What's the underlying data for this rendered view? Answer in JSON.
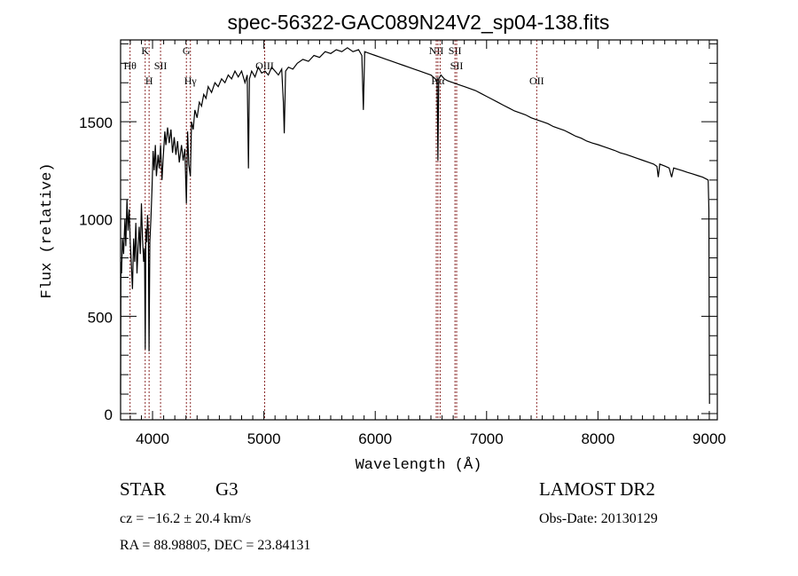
{
  "chart_data": {
    "type": "line",
    "title": "spec-56322-GAC089N24V2_sp04-138.fits",
    "xlabel": "Wavelength (Å)",
    "ylabel": "Flux (relative)",
    "xlim": [
      3713,
      9072
    ],
    "ylim": [
      -32,
      1920
    ],
    "xticks": [
      4000,
      5000,
      6000,
      7000,
      8000,
      9000
    ],
    "yticks": [
      0,
      500,
      1000,
      1500
    ],
    "grid": false,
    "series": [
      {
        "name": "spectrum",
        "color": "#000000",
        "x": [
          3713,
          3716,
          3722,
          3730,
          3740,
          3752,
          3760,
          3770,
          3780,
          3790,
          3800,
          3810,
          3820,
          3830,
          3840,
          3850,
          3860,
          3870,
          3880,
          3890,
          3900,
          3910,
          3920,
          3928,
          3934,
          3940,
          3948,
          3955,
          3962,
          3969,
          3976,
          3985,
          3995,
          4005,
          4015,
          4025,
          4035,
          4050,
          4060,
          4072,
          4085,
          4095,
          4110,
          4120,
          4135,
          4150,
          4165,
          4180,
          4195,
          4210,
          4225,
          4240,
          4260,
          4275,
          4290,
          4304,
          4315,
          4325,
          4340,
          4350,
          4365,
          4380,
          4400,
          4420,
          4440,
          4460,
          4480,
          4500,
          4530,
          4560,
          4590,
          4620,
          4650,
          4680,
          4710,
          4740,
          4770,
          4800,
          4830,
          4850,
          4861,
          4870,
          4890,
          4920,
          4950,
          4980,
          5010,
          5040,
          5070,
          5100,
          5130,
          5160,
          5175,
          5183,
          5195,
          5220,
          5260,
          5300,
          5350,
          5400,
          5450,
          5500,
          5550,
          5600,
          5650,
          5700,
          5750,
          5800,
          5850,
          5880,
          5893,
          5905,
          5950,
          6000,
          6050,
          6100,
          6150,
          6200,
          6250,
          6300,
          6350,
          6400,
          6450,
          6500,
          6540,
          6556,
          6563,
          6570,
          6590,
          6620,
          6650,
          6700,
          6750,
          6800,
          6850,
          6900,
          6950,
          7000,
          7050,
          7100,
          7150,
          7200,
          7250,
          7300,
          7350,
          7400,
          7450,
          7500,
          7550,
          7600,
          7650,
          7700,
          7750,
          7800,
          7850,
          7900,
          7950,
          8000,
          8050,
          8100,
          8150,
          8200,
          8250,
          8300,
          8350,
          8400,
          8450,
          8500,
          8530,
          8542,
          8555,
          8600,
          8640,
          8662,
          8680,
          8720,
          8760,
          8800,
          8850,
          8900,
          8940,
          8975,
          8990,
          8996,
          9000,
          9002
        ],
        "y": [
          100,
          780,
          720,
          900,
          820,
          1000,
          860,
          1100,
          940,
          1050,
          880,
          760,
          640,
          900,
          780,
          980,
          720,
          850,
          960,
          820,
          1080,
          900,
          780,
          850,
          330,
          950,
          880,
          1020,
          940,
          320,
          880,
          1000,
          1150,
          1350,
          1250,
          1380,
          1220,
          1330,
          1260,
          1380,
          1200,
          1310,
          1450,
          1380,
          1470,
          1390,
          1460,
          1340,
          1420,
          1330,
          1400,
          1290,
          1380,
          1300,
          1360,
          1080,
          1450,
          1280,
          1220,
          1500,
          1460,
          1560,
          1520,
          1600,
          1580,
          1640,
          1620,
          1680,
          1650,
          1700,
          1680,
          1720,
          1700,
          1740,
          1720,
          1760,
          1730,
          1760,
          1700,
          1740,
          1260,
          1720,
          1760,
          1730,
          1780,
          1750,
          1760,
          1740,
          1780,
          1760,
          1740,
          1770,
          1600,
          1440,
          1760,
          1780,
          1770,
          1800,
          1820,
          1810,
          1840,
          1830,
          1860,
          1850,
          1870,
          1860,
          1880,
          1860,
          1870,
          1840,
          1560,
          1860,
          1850,
          1840,
          1830,
          1820,
          1810,
          1800,
          1790,
          1780,
          1770,
          1760,
          1750,
          1740,
          1720,
          1700,
          1300,
          1720,
          1740,
          1720,
          1710,
          1700,
          1690,
          1680,
          1670,
          1660,
          1645,
          1630,
          1615,
          1600,
          1585,
          1570,
          1555,
          1545,
          1535,
          1520,
          1510,
          1500,
          1490,
          1475,
          1465,
          1455,
          1440,
          1425,
          1415,
          1400,
          1390,
          1382,
          1372,
          1362,
          1352,
          1340,
          1332,
          1322,
          1312,
          1302,
          1292,
          1282,
          1270,
          1215,
          1282,
          1272,
          1262,
          1215,
          1262,
          1255,
          1248,
          1240,
          1232,
          1222,
          1215,
          1205,
          1200,
          1050,
          250,
          50
        ]
      }
    ],
    "line_markers": [
      {
        "label": "Hθ",
        "wavelength": 3798,
        "row": 2
      },
      {
        "label": "K",
        "wavelength": 3934,
        "row": 1
      },
      {
        "label": "H",
        "wavelength": 3969,
        "row": 3
      },
      {
        "label": "SII",
        "wavelength": 4072,
        "row": 2
      },
      {
        "label": "G",
        "wavelength": 4304,
        "row": 1
      },
      {
        "label": "Hγ",
        "wavelength": 4340,
        "row": 3
      },
      {
        "label": "OIII",
        "wavelength": 5007,
        "row": 2
      },
      {
        "label": "NII",
        "wavelength": 6548,
        "row": 1
      },
      {
        "label": "Hα",
        "wavelength": 6563,
        "row": 3
      },
      {
        "label": "",
        "wavelength": 6583,
        "row": 0
      },
      {
        "label": "SII",
        "wavelength": 6716,
        "row": 1
      },
      {
        "label": "SII",
        "wavelength": 6731,
        "row": 2
      },
      {
        "label": "OII",
        "wavelength": 7450,
        "row": 3
      }
    ],
    "marker_color": "#8b2a2a"
  },
  "info": {
    "object_class": "STAR",
    "subclass": "G3",
    "redshift": "cz = −16.2 ± 20.4 km/s",
    "coords": "RA =  88.98805, DEC =  23.84131",
    "survey": "LAMOST DR2",
    "obs_date": "Obs-Date: 20130129"
  }
}
